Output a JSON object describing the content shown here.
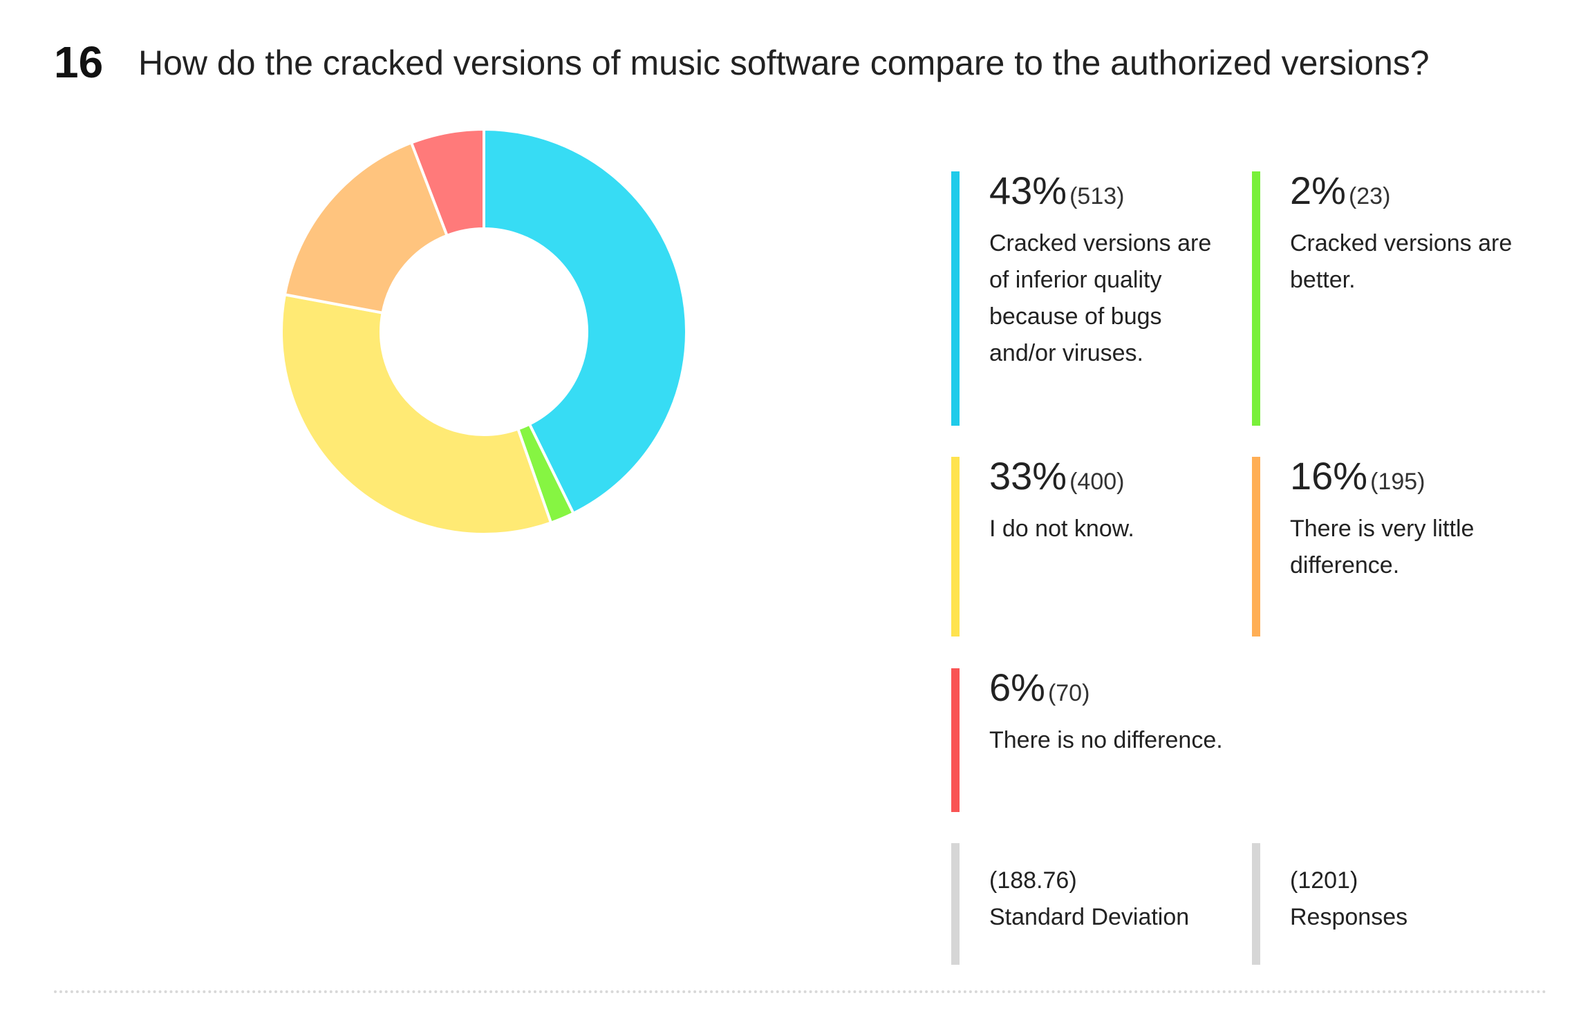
{
  "question": {
    "number": "16",
    "title": "How do the cracked versions of music software compare to the authorized versions?"
  },
  "chart_data": {
    "type": "pie",
    "variant": "donut",
    "total": 1201,
    "slices": [
      {
        "label": "Cracked versions are of inferior quality because of bugs and/or viruses.",
        "percent": "43%",
        "count": "(513)",
        "value": 513,
        "color": "#37DCF4"
      },
      {
        "label": "Cracked versions are better.",
        "percent": "2%",
        "count": "(23)",
        "value": 23,
        "color": "#86F542"
      },
      {
        "label": "I do not know.",
        "percent": "33%",
        "count": "(400)",
        "value": 400,
        "color": "#FFEA74"
      },
      {
        "label": "There is very little difference.",
        "percent": "16%",
        "count": "(195)",
        "value": 195,
        "color": "#FFC47E"
      },
      {
        "label": "There is no difference.",
        "percent": "6%",
        "count": "(70)",
        "value": 70,
        "color": "#FF7A7A"
      }
    ]
  },
  "legend": {
    "items": [
      {
        "percent": "43%",
        "count": "(513)",
        "label": "Cracked versions are of inferior quality because of bugs and/or viruses.",
        "bar_color": "#1FCBEA"
      },
      {
        "percent": "2%",
        "count": "(23)",
        "label": "Cracked versions are better.",
        "bar_color": "#79F03A"
      },
      {
        "percent": "33%",
        "count": "(400)",
        "label": "I do not know.",
        "bar_color": "#FFE34F"
      },
      {
        "percent": "16%",
        "count": "(195)",
        "label": "There is very little difference.",
        "bar_color": "#FFAE55"
      },
      {
        "percent": "6%",
        "count": "(70)",
        "label": "There is no difference.",
        "bar_color": "#F95454"
      }
    ]
  },
  "stats": {
    "std_dev": {
      "value": "(188.76)",
      "label": "Standard Deviation"
    },
    "responses": {
      "value": "(1201)",
      "label": "Responses"
    },
    "bar_color": "#D6D6D6"
  }
}
